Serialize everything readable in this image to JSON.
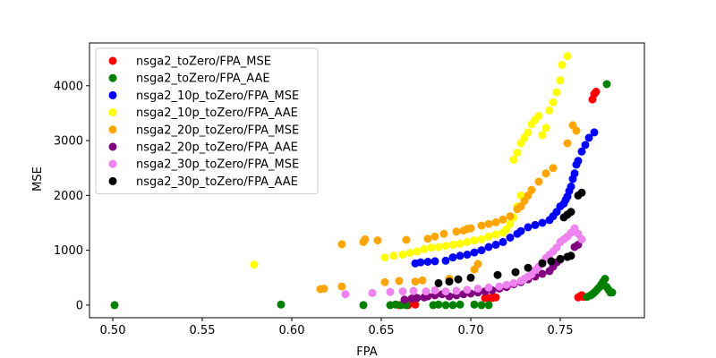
{
  "chart_data": {
    "type": "scatter",
    "title": "",
    "xlabel": "FPA",
    "ylabel": "MSE",
    "xlim": [
      0.487,
      0.797
    ],
    "ylim": [
      -230,
      4780
    ],
    "xticks": [
      "0.50",
      "0.55",
      "0.60",
      "0.65",
      "0.70",
      "0.75"
    ],
    "xtick_values": [
      0.5,
      0.55,
      0.6,
      0.65,
      0.7,
      0.75
    ],
    "yticks": [
      "0",
      "1000",
      "2000",
      "3000",
      "4000"
    ],
    "ytick_values": [
      0,
      1000,
      2000,
      3000,
      4000
    ],
    "grid": false,
    "legend_position": "top-left",
    "series": [
      {
        "name": "nsga2_toZero/FPA_MSE",
        "color": "#ff0000",
        "points": [
          [
            0.66,
            0
          ],
          [
            0.665,
            0
          ],
          [
            0.669,
            10
          ],
          [
            0.708,
            130
          ],
          [
            0.71,
            130
          ],
          [
            0.712,
            130
          ],
          [
            0.714,
            140
          ],
          [
            0.76,
            140
          ],
          [
            0.761,
            160
          ],
          [
            0.762,
            180
          ],
          [
            0.763,
            150
          ],
          [
            0.768,
            3750
          ],
          [
            0.769,
            3850
          ],
          [
            0.77,
            3890
          ]
        ]
      },
      {
        "name": "nsga2_toZero/FPA_AAE",
        "color": "#008000",
        "points": [
          [
            0.501,
            0
          ],
          [
            0.594,
            10
          ],
          [
            0.64,
            0
          ],
          [
            0.655,
            0
          ],
          [
            0.658,
            10
          ],
          [
            0.661,
            0
          ],
          [
            0.664,
            0
          ],
          [
            0.679,
            0
          ],
          [
            0.682,
            10
          ],
          [
            0.686,
            0
          ],
          [
            0.69,
            0
          ],
          [
            0.694,
            10
          ],
          [
            0.702,
            10
          ],
          [
            0.706,
            0
          ],
          [
            0.71,
            0
          ],
          [
            0.765,
            150
          ],
          [
            0.767,
            180
          ],
          [
            0.768,
            200
          ],
          [
            0.769,
            230
          ],
          [
            0.77,
            260
          ],
          [
            0.771,
            300
          ],
          [
            0.772,
            330
          ],
          [
            0.773,
            380
          ],
          [
            0.774,
            430
          ],
          [
            0.775,
            480
          ],
          [
            0.776,
            330
          ],
          [
            0.777,
            280
          ],
          [
            0.778,
            230
          ],
          [
            0.779,
            230
          ],
          [
            0.776,
            4030
          ]
        ]
      },
      {
        "name": "nsga2_10p_toZero/FPA_MSE",
        "color": "#0000ff",
        "points": [
          [
            0.669,
            760
          ],
          [
            0.672,
            780
          ],
          [
            0.676,
            790
          ],
          [
            0.68,
            800
          ],
          [
            0.686,
            810
          ],
          [
            0.69,
            870
          ],
          [
            0.694,
            900
          ],
          [
            0.698,
            920
          ],
          [
            0.702,
            960
          ],
          [
            0.706,
            1000
          ],
          [
            0.71,
            1060
          ],
          [
            0.714,
            1100
          ],
          [
            0.718,
            1150
          ],
          [
            0.722,
            1230
          ],
          [
            0.726,
            1300
          ],
          [
            0.728,
            1350
          ],
          [
            0.732,
            1420
          ],
          [
            0.736,
            1460
          ],
          [
            0.74,
            1500
          ],
          [
            0.744,
            1550
          ],
          [
            0.746,
            1620
          ],
          [
            0.748,
            1700
          ],
          [
            0.75,
            1800
          ],
          [
            0.752,
            1850
          ],
          [
            0.753,
            1920
          ],
          [
            0.754,
            1980
          ],
          [
            0.755,
            2080
          ],
          [
            0.756,
            2160
          ],
          [
            0.757,
            2300
          ],
          [
            0.758,
            2400
          ],
          [
            0.759,
            2560
          ],
          [
            0.76,
            2630
          ],
          [
            0.762,
            2800
          ],
          [
            0.764,
            2920
          ],
          [
            0.766,
            3050
          ],
          [
            0.769,
            3150
          ]
        ]
      },
      {
        "name": "nsga2_10p_toZero/FPA_AAE",
        "color": "#ffff00",
        "points": [
          [
            0.579,
            740
          ],
          [
            0.652,
            870
          ],
          [
            0.657,
            900
          ],
          [
            0.662,
            920
          ],
          [
            0.666,
            950
          ],
          [
            0.67,
            980
          ],
          [
            0.674,
            1020
          ],
          [
            0.678,
            1050
          ],
          [
            0.682,
            1060
          ],
          [
            0.686,
            1080
          ],
          [
            0.69,
            1100
          ],
          [
            0.694,
            1120
          ],
          [
            0.698,
            1150
          ],
          [
            0.702,
            1180
          ],
          [
            0.706,
            1200
          ],
          [
            0.71,
            1250
          ],
          [
            0.714,
            1290
          ],
          [
            0.718,
            1320
          ],
          [
            0.72,
            1380
          ],
          [
            0.722,
            1480
          ],
          [
            0.724,
            1600
          ],
          [
            0.726,
            1800
          ],
          [
            0.728,
            2000
          ],
          [
            0.724,
            2650
          ],
          [
            0.726,
            2780
          ],
          [
            0.728,
            2950
          ],
          [
            0.73,
            3050
          ],
          [
            0.732,
            3150
          ],
          [
            0.734,
            3300
          ],
          [
            0.736,
            3380
          ],
          [
            0.738,
            3450
          ],
          [
            0.74,
            3100
          ],
          [
            0.742,
            3230
          ],
          [
            0.744,
            3550
          ],
          [
            0.746,
            3700
          ],
          [
            0.748,
            3880
          ],
          [
            0.75,
            4100
          ],
          [
            0.751,
            4380
          ],
          [
            0.754,
            4540
          ]
        ]
      },
      {
        "name": "nsga2_20p_toZero/FPA_MSE",
        "color": "#ffa500",
        "points": [
          [
            0.616,
            290
          ],
          [
            0.618,
            300
          ],
          [
            0.628,
            1110
          ],
          [
            0.628,
            340
          ],
          [
            0.64,
            1150
          ],
          [
            0.641,
            1200
          ],
          [
            0.648,
            1180
          ],
          [
            0.652,
            420
          ],
          [
            0.66,
            440
          ],
          [
            0.664,
            1190
          ],
          [
            0.669,
            430
          ],
          [
            0.673,
            450
          ],
          [
            0.676,
            1210
          ],
          [
            0.68,
            1250
          ],
          [
            0.685,
            1300
          ],
          [
            0.688,
            480
          ],
          [
            0.692,
            1340
          ],
          [
            0.696,
            1360
          ],
          [
            0.698,
            1390
          ],
          [
            0.7,
            1400
          ],
          [
            0.702,
            650
          ],
          [
            0.704,
            750
          ],
          [
            0.706,
            1450
          ],
          [
            0.71,
            1480
          ],
          [
            0.714,
            1510
          ],
          [
            0.718,
            1560
          ],
          [
            0.722,
            1620
          ],
          [
            0.726,
            1750
          ],
          [
            0.728,
            1800
          ],
          [
            0.73,
            1900
          ],
          [
            0.732,
            2000
          ],
          [
            0.734,
            2100
          ],
          [
            0.738,
            2250
          ],
          [
            0.742,
            2400
          ],
          [
            0.746,
            2500
          ],
          [
            0.754,
            2950
          ],
          [
            0.757,
            3280
          ],
          [
            0.759,
            3180
          ]
        ]
      },
      {
        "name": "nsga2_20p_toZero/FPA_AAE",
        "color": "#800080",
        "points": [
          [
            0.663,
            100
          ],
          [
            0.667,
            120
          ],
          [
            0.67,
            130
          ],
          [
            0.674,
            140
          ],
          [
            0.676,
            160
          ],
          [
            0.68,
            180
          ],
          [
            0.684,
            200
          ],
          [
            0.688,
            160
          ],
          [
            0.692,
            180
          ],
          [
            0.696,
            200
          ],
          [
            0.7,
            210
          ],
          [
            0.704,
            230
          ],
          [
            0.708,
            250
          ],
          [
            0.712,
            270
          ],
          [
            0.716,
            300
          ],
          [
            0.72,
            330
          ],
          [
            0.724,
            380
          ],
          [
            0.728,
            420
          ],
          [
            0.732,
            470
          ],
          [
            0.736,
            520
          ],
          [
            0.74,
            570
          ],
          [
            0.744,
            620
          ],
          [
            0.746,
            700
          ],
          [
            0.748,
            780
          ],
          [
            0.75,
            830
          ],
          [
            0.754,
            880
          ],
          [
            0.758,
            1060
          ],
          [
            0.76,
            1100
          ]
        ]
      },
      {
        "name": "nsga2_30p_toZero/FPA_MSE",
        "color": "#ee82ee",
        "points": [
          [
            0.63,
            200
          ],
          [
            0.645,
            220
          ],
          [
            0.655,
            240
          ],
          [
            0.662,
            250
          ],
          [
            0.668,
            260
          ],
          [
            0.675,
            250
          ],
          [
            0.68,
            270
          ],
          [
            0.686,
            250
          ],
          [
            0.692,
            260
          ],
          [
            0.698,
            280
          ],
          [
            0.704,
            300
          ],
          [
            0.71,
            320
          ],
          [
            0.716,
            340
          ],
          [
            0.72,
            370
          ],
          [
            0.724,
            400
          ],
          [
            0.728,
            440
          ],
          [
            0.73,
            480
          ],
          [
            0.732,
            520
          ],
          [
            0.734,
            560
          ],
          [
            0.736,
            640
          ],
          [
            0.738,
            700
          ],
          [
            0.74,
            780
          ],
          [
            0.742,
            860
          ],
          [
            0.744,
            920
          ],
          [
            0.746,
            980
          ],
          [
            0.748,
            1050
          ],
          [
            0.75,
            1150
          ],
          [
            0.752,
            1200
          ],
          [
            0.754,
            1250
          ],
          [
            0.756,
            1320
          ],
          [
            0.758,
            1400
          ],
          [
            0.76,
            1300
          ],
          [
            0.762,
            1200
          ]
        ]
      },
      {
        "name": "nsga2_30p_toZero/FPA_AAE",
        "color": "#000000",
        "points": [
          [
            0.682,
            400
          ],
          [
            0.688,
            430
          ],
          [
            0.693,
            470
          ],
          [
            0.7,
            500
          ],
          [
            0.715,
            550
          ],
          [
            0.725,
            600
          ],
          [
            0.732,
            680
          ],
          [
            0.74,
            760
          ],
          [
            0.745,
            800
          ],
          [
            0.75,
            840
          ],
          [
            0.754,
            880
          ],
          [
            0.756,
            900
          ],
          [
            0.752,
            1600
          ],
          [
            0.754,
            1650
          ],
          [
            0.756,
            1700
          ],
          [
            0.76,
            2000
          ],
          [
            0.762,
            2050
          ]
        ]
      }
    ]
  }
}
